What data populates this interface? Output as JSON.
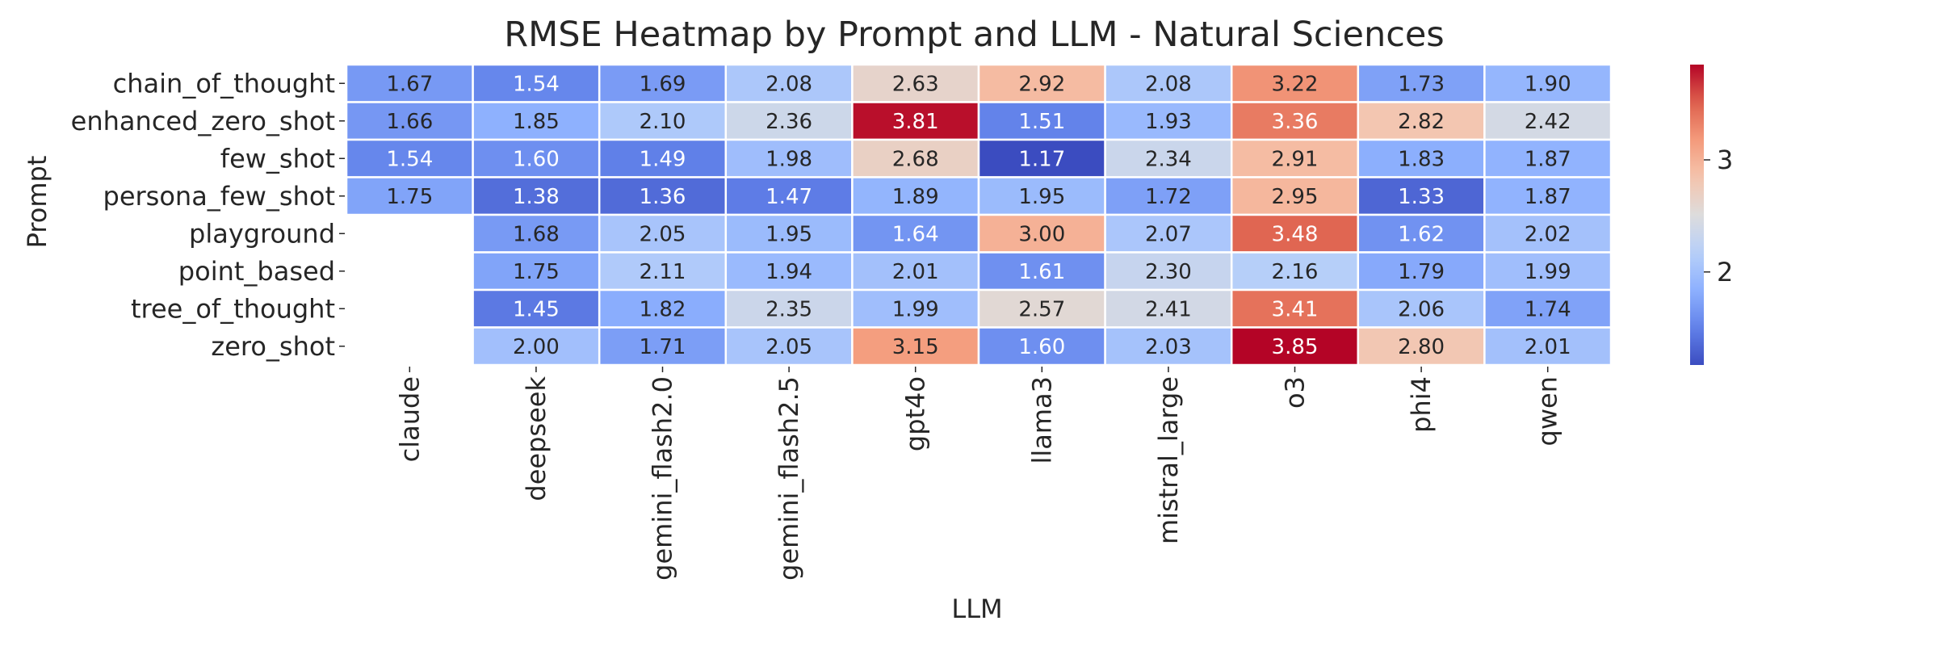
{
  "chart_data": {
    "type": "heatmap",
    "title": "RMSE Heatmap by Prompt and LLM - Natural Sciences",
    "xlabel": "LLM",
    "ylabel": "Prompt",
    "x_categories": [
      "claude",
      "deepseek",
      "gemini_flash2.0",
      "gemini_flash2.5",
      "gpt4o",
      "llama3",
      "mistral_large",
      "o3",
      "phi4",
      "qwen"
    ],
    "y_categories": [
      "chain_of_thought",
      "enhanced_zero_shot",
      "few_shot",
      "persona_few_shot",
      "playground",
      "point_based",
      "tree_of_thought",
      "zero_shot"
    ],
    "values": [
      [
        1.67,
        1.54,
        1.69,
        2.08,
        2.63,
        2.92,
        2.08,
        3.22,
        1.73,
        1.9
      ],
      [
        1.66,
        1.85,
        2.1,
        2.36,
        3.81,
        1.51,
        1.93,
        3.36,
        2.82,
        2.42
      ],
      [
        1.54,
        1.6,
        1.49,
        1.98,
        2.68,
        1.17,
        2.34,
        2.91,
        1.83,
        1.87
      ],
      [
        1.75,
        1.38,
        1.36,
        1.47,
        1.89,
        1.95,
        1.72,
        2.95,
        1.33,
        1.87
      ],
      [
        null,
        1.68,
        2.05,
        1.95,
        1.64,
        3.0,
        2.07,
        3.48,
        1.62,
        2.02
      ],
      [
        null,
        1.75,
        2.11,
        1.94,
        2.01,
        1.61,
        2.3,
        2.16,
        1.79,
        1.99
      ],
      [
        null,
        1.45,
        1.82,
        2.35,
        1.99,
        2.57,
        2.41,
        3.41,
        2.06,
        1.74
      ],
      [
        null,
        2.0,
        1.71,
        2.05,
        3.15,
        1.6,
        2.03,
        3.85,
        2.8,
        2.01
      ]
    ],
    "value_format": "0.00",
    "colormap": "coolwarm",
    "color_range": [
      1.17,
      3.85
    ],
    "colorbar_ticks": [
      2,
      3
    ],
    "grid": false,
    "legend": "colorbar right"
  }
}
